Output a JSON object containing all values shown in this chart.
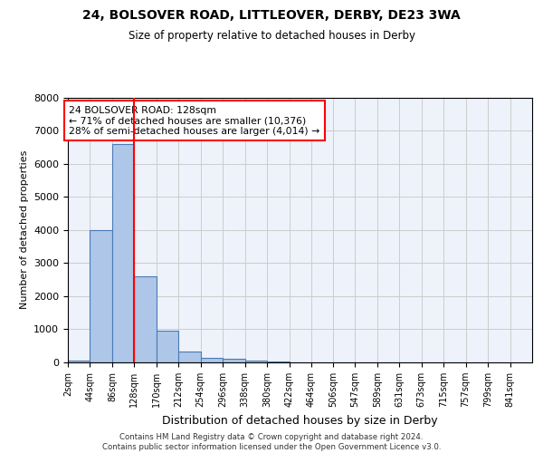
{
  "title1": "24, BOLSOVER ROAD, LITTLEOVER, DERBY, DE23 3WA",
  "title2": "Size of property relative to detached houses in Derby",
  "xlabel": "Distribution of detached houses by size in Derby",
  "ylabel": "Number of detached properties",
  "footer": "Contains HM Land Registry data © Crown copyright and database right 2024.\nContains public sector information licensed under the Open Government Licence v3.0.",
  "bin_labels": [
    "2sqm",
    "44sqm",
    "86sqm",
    "128sqm",
    "170sqm",
    "212sqm",
    "254sqm",
    "296sqm",
    "338sqm",
    "380sqm",
    "422sqm",
    "464sqm",
    "506sqm",
    "547sqm",
    "589sqm",
    "631sqm",
    "673sqm",
    "715sqm",
    "757sqm",
    "799sqm",
    "841sqm"
  ],
  "bin_edges": [
    2,
    44,
    86,
    128,
    170,
    212,
    254,
    296,
    338,
    380,
    422,
    464,
    506,
    547,
    589,
    631,
    673,
    715,
    757,
    799,
    841
  ],
  "bar_heights": [
    50,
    4000,
    6600,
    2600,
    950,
    320,
    130,
    100,
    50,
    20,
    10,
    5,
    3,
    2,
    2,
    2,
    1,
    1,
    1,
    1
  ],
  "bar_color": "#aec6e8",
  "bar_edge_color": "#4a7ab5",
  "vline_x": 128,
  "vline_color": "red",
  "annotation_box_text": "24 BOLSOVER ROAD: 128sqm\n← 71% of detached houses are smaller (10,376)\n28% of semi-detached houses are larger (4,014) →",
  "annotation_box_color": "red",
  "ylim": [
    0,
    8000
  ],
  "grid_color": "#cccccc",
  "background_color": "#eef2fa"
}
